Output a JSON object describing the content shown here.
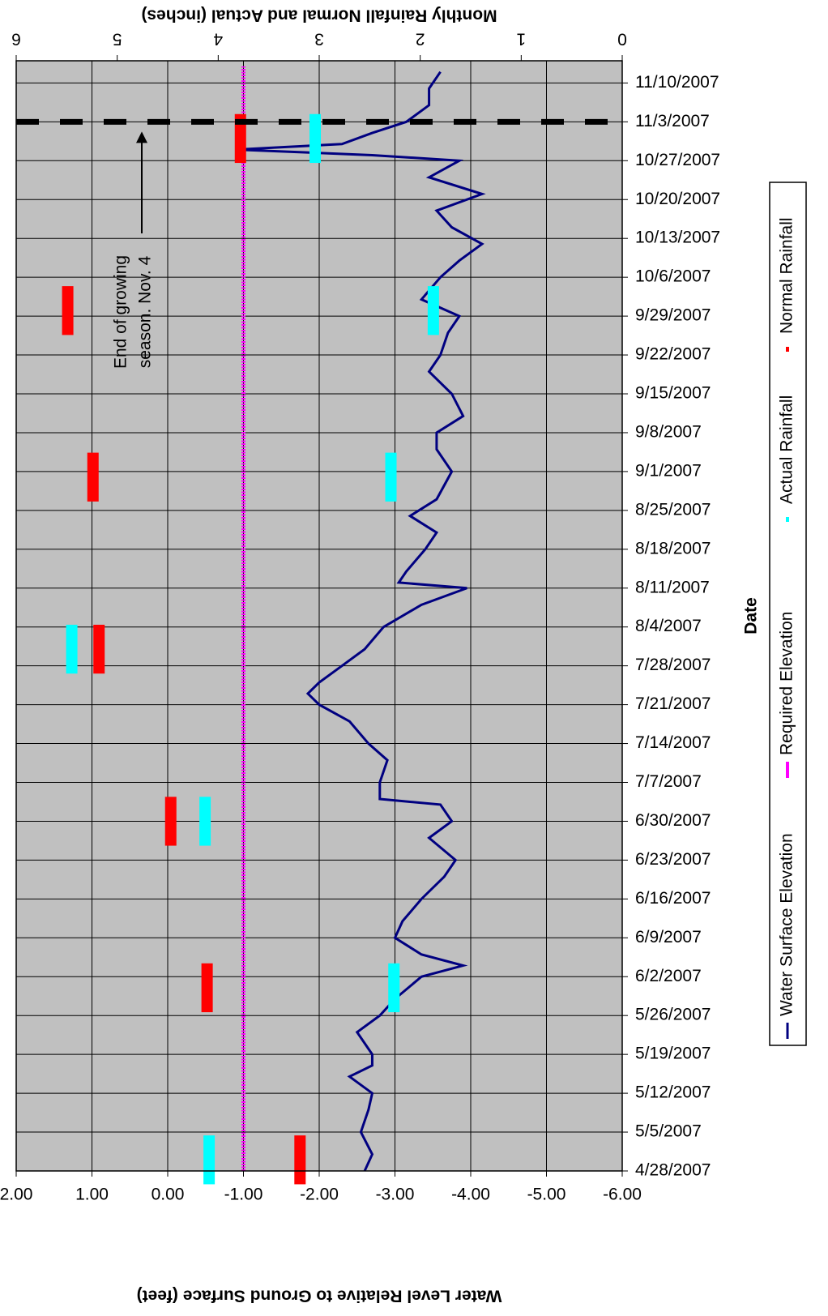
{
  "chart_data": {
    "type": "line",
    "x_label": "Date",
    "y_label": "Water Level Relative to Ground Surface (feet)",
    "y2_label": "Monthly Rainfall Normal and Actual (inches)",
    "xlim": [
      "4/28/2007",
      "11/14/2007"
    ],
    "xticks": [
      "4/28/2007",
      "5/5/2007",
      "5/12/2007",
      "5/19/2007",
      "5/26/2007",
      "6/2/2007",
      "6/9/2007",
      "6/16/2007",
      "6/23/2007",
      "6/30/2007",
      "7/7/2007",
      "7/14/2007",
      "7/21/2007",
      "7/28/2007",
      "8/4/2007",
      "8/11/2007",
      "8/18/2007",
      "8/25/2007",
      "9/1/2007",
      "9/8/2007",
      "9/15/2007",
      "9/22/2007",
      "9/29/2007",
      "10/6/2007",
      "10/13/2007",
      "10/20/2007",
      "10/27/2007",
      "11/3/2007",
      "11/10/2007"
    ],
    "ylim": [
      -6,
      2
    ],
    "yticks": [
      {
        "value": 2,
        "label": "2.00"
      },
      {
        "value": 1,
        "label": "1.00"
      },
      {
        "value": 0,
        "label": "0.00"
      },
      {
        "value": -1,
        "label": "-1.00"
      },
      {
        "value": -2,
        "label": "-2.00"
      },
      {
        "value": -3,
        "label": "-3.00"
      },
      {
        "value": -4,
        "label": "-4.00"
      },
      {
        "value": -5,
        "label": "-5.00"
      },
      {
        "value": -6,
        "label": "-6.00"
      }
    ],
    "y2lim": [
      0,
      6
    ],
    "y2ticks": [
      0,
      1,
      2,
      3,
      4,
      5,
      6
    ],
    "grid": true,
    "legend": "right",
    "series": [
      {
        "name": "Water Surface Elevation",
        "type": "line",
        "color": "#000080",
        "x": [
          "4/28/2007",
          "5/1/2007",
          "5/5/2007",
          "5/9/2007",
          "5/12/2007",
          "5/15/2007",
          "5/17/2007",
          "5/19/2007",
          "5/23/2007",
          "5/26/2007",
          "5/29/2007",
          "6/2/2007",
          "6/4/2007",
          "6/6/2007",
          "6/9/2007",
          "6/12/2007",
          "6/16/2007",
          "6/20/2007",
          "6/23/2007",
          "6/27/2007",
          "6/30/2007",
          "7/3/2007",
          "7/4/2007",
          "7/7/2007",
          "7/11/2007",
          "7/14/2007",
          "7/18/2007",
          "7/21/2007",
          "7/23/2007",
          "7/25/2007",
          "7/28/2007",
          "7/31/2007",
          "8/4/2007",
          "8/8/2007",
          "8/11/2007",
          "8/12/2007",
          "8/14/2007",
          "8/18/2007",
          "8/21/2007",
          "8/24/2007",
          "8/27/2007",
          "9/1/2007",
          "9/5/2007",
          "9/8/2007",
          "9/11/2007",
          "9/15/2007",
          "9/19/2007",
          "9/22/2007",
          "9/26/2007",
          "9/29/2007",
          "10/2/2007",
          "10/6/2007",
          "10/9/2007",
          "10/12/2007",
          "10/15/2007",
          "10/18/2007",
          "10/21/2007",
          "10/24/2007",
          "10/27/2007",
          "10/28/2007",
          "10/29/2007",
          "10/30/2007",
          "11/1/2007",
          "11/3/2007",
          "11/6/2007",
          "11/9/2007",
          "11/12/2007"
        ],
        "values": [
          -2.6,
          -2.7,
          -2.55,
          -2.65,
          -2.7,
          -2.4,
          -2.7,
          -2.7,
          -2.5,
          -2.8,
          -3.0,
          -3.35,
          -3.9,
          -3.35,
          -3.0,
          -3.1,
          -3.35,
          -3.65,
          -3.8,
          -3.45,
          -3.75,
          -3.6,
          -2.8,
          -2.8,
          -2.9,
          -2.65,
          -2.4,
          -2.0,
          -1.85,
          -2.0,
          -2.3,
          -2.6,
          -2.85,
          -3.35,
          -3.95,
          -3.05,
          -3.15,
          -3.4,
          -3.55,
          -3.2,
          -3.55,
          -3.75,
          -3.55,
          -3.55,
          -3.9,
          -3.75,
          -3.45,
          -3.6,
          -3.7,
          -3.85,
          -3.35,
          -3.6,
          -3.85,
          -4.15,
          -3.75,
          -3.55,
          -4.15,
          -3.45,
          -3.85,
          -2.7,
          -0.9,
          -2.3,
          -2.7,
          -3.15,
          -3.45,
          -3.45,
          -3.6
        ]
      },
      {
        "name": "Required Elevation",
        "type": "line",
        "color": "#ff00ff",
        "x": [
          "4/28/2007",
          "11/13/2007"
        ],
        "values": [
          -1,
          -1
        ]
      },
      {
        "name": "Actual Rainfall",
        "type": "bar",
        "axis": "y2",
        "color": "#00ffff",
        "x": [
          "4/30/2007",
          "5/31/2007",
          "6/30/2007",
          "7/31/2007",
          "8/31/2007",
          "9/30/2007",
          "10/31/2007"
        ],
        "values": [
          4.09,
          2.26,
          4.13,
          5.45,
          2.29,
          1.87,
          3.04
        ]
      },
      {
        "name": "Normal Rainfall",
        "type": "bar",
        "axis": "y2",
        "color": "#ff0000",
        "x": [
          "4/30/2007",
          "5/31/2007",
          "6/30/2007",
          "7/31/2007",
          "8/31/2007",
          "9/30/2007",
          "10/31/2007"
        ],
        "values": [
          3.19,
          4.11,
          4.47,
          5.18,
          5.24,
          5.49,
          3.78
        ]
      }
    ],
    "annotations": [
      {
        "text": [
          "End of growing",
          "season. Nov. 4"
        ],
        "x": "11/3/2007"
      }
    ]
  }
}
